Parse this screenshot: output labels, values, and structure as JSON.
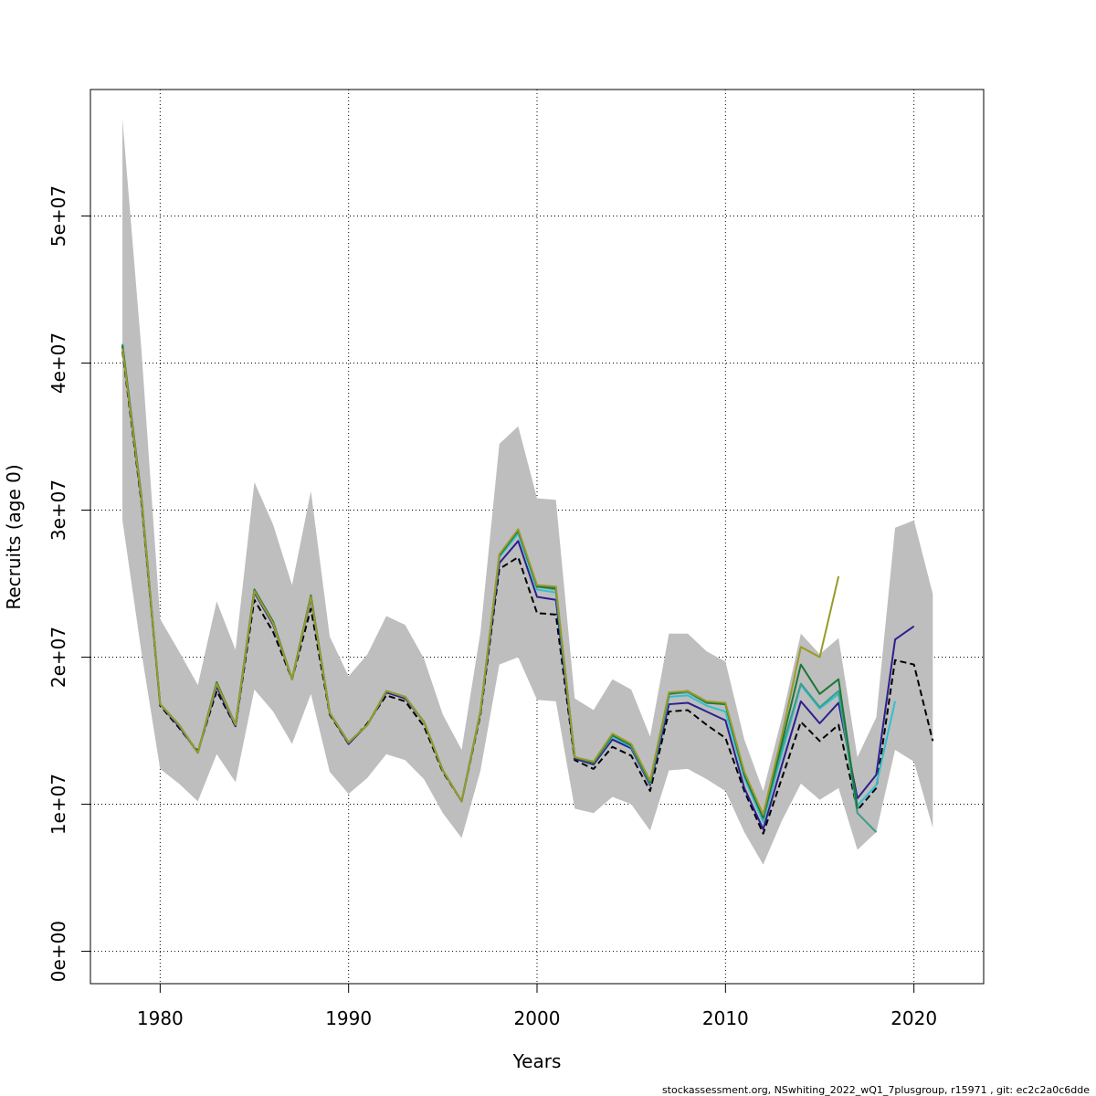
{
  "chart_data": {
    "type": "line",
    "title": "",
    "xlabel": "Years",
    "ylabel": "Recruits (age 0)",
    "xlim": [
      1976.3,
      1023.7
    ],
    "ylim": [
      -2200000,
      58600000
    ],
    "x_ticks": [
      1980,
      1990,
      2000,
      2010,
      2020
    ],
    "x_tick_labels": [
      "1980",
      "1990",
      "2000",
      "2010",
      "2020"
    ],
    "y_ticks": [
      0,
      10000000,
      20000000,
      30000000,
      40000000,
      50000000
    ],
    "y_tick_labels": [
      "0e+00",
      "1e+07",
      "2e+07",
      "3e+07",
      "4e+07",
      "5e+07"
    ],
    "grid": true,
    "band": {
      "fill": "#bebebe",
      "x": [
        1978,
        1979,
        1980,
        1981,
        1982,
        1983,
        1984,
        1985,
        1986,
        1987,
        1988,
        1989,
        1990,
        1991,
        1992,
        1993,
        1994,
        1995,
        1996,
        1997,
        1998,
        1999,
        2000,
        2001,
        2002,
        2003,
        2004,
        2005,
        2006,
        2007,
        2008,
        2009,
        2010,
        2011,
        2012,
        2013,
        2014,
        2015,
        2016,
        2017,
        2018,
        2019,
        2020,
        2021
      ],
      "upper": [
        56600000,
        41000000,
        22600000,
        20400000,
        18100000,
        23800000,
        20500000,
        31900000,
        29000000,
        24900000,
        31300000,
        21400000,
        18700000,
        20200000,
        22800000,
        22200000,
        19900000,
        16100000,
        13700000,
        21700000,
        34500000,
        35700000,
        30800000,
        30700000,
        17200000,
        16400000,
        18500000,
        17800000,
        14600000,
        21600000,
        21600000,
        20400000,
        19700000,
        14400000,
        10900000,
        15900000,
        21600000,
        20200000,
        21300000,
        13200000,
        15900000,
        28800000,
        29300000,
        24300000
      ],
      "lower": [
        29300000,
        20400000,
        12400000,
        11400000,
        10200000,
        13400000,
        11500000,
        17800000,
        16300000,
        14100000,
        17500000,
        12200000,
        10700000,
        11800000,
        13400000,
        13000000,
        11700000,
        9400000,
        7700000,
        12300000,
        19500000,
        20000000,
        17100000,
        17000000,
        9700000,
        9400000,
        10500000,
        10000000,
        8200000,
        12300000,
        12400000,
        11700000,
        10900000,
        8100000,
        5900000,
        8900000,
        11400000,
        10300000,
        11100000,
        6900000,
        8100000,
        13700000,
        12900000,
        8400000
      ]
    },
    "series": [
      {
        "color": "#000000",
        "dash": true,
        "width": 2,
        "x": [
          1978,
          1979,
          1980,
          1981,
          1982,
          1983,
          1984,
          1985,
          1986,
          1987,
          1988,
          1989,
          1990,
          1991,
          1992,
          1993,
          1994,
          1995,
          1996,
          1997,
          1998,
          1999,
          2000,
          2001,
          2002,
          2003,
          2004,
          2005,
          2006,
          2007,
          2008,
          2009,
          2010,
          2011,
          2012,
          2013,
          2014,
          2015,
          2016,
          2017,
          2018,
          2019,
          2020,
          2021
        ],
        "values": [
          40800000,
          30600000,
          16700000,
          15200000,
          13600000,
          17700000,
          15300000,
          23900000,
          21700000,
          18500000,
          23300000,
          16100000,
          14100000,
          15500000,
          17400000,
          17000000,
          15300000,
          12200000,
          10200000,
          16100000,
          26000000,
          26800000,
          23000000,
          22900000,
          13000000,
          12400000,
          13900000,
          13300000,
          10900000,
          16300000,
          16400000,
          15400000,
          14500000,
          10900000,
          8000000,
          11800000,
          15600000,
          14300000,
          15400000,
          9600000,
          11100000,
          19800000,
          19500000,
          14300000
        ]
      },
      {
        "color": "#2c1f8f",
        "dash": false,
        "width": 2,
        "x": [
          1978,
          1979,
          1980,
          1981,
          1982,
          1983,
          1984,
          1985,
          1986,
          1987,
          1988,
          1989,
          1990,
          1991,
          1992,
          1993,
          1994,
          1995,
          1996,
          1997,
          1998,
          1999,
          2000,
          2001,
          2002,
          2003,
          2004,
          2005,
          2006,
          2007,
          2008,
          2009,
          2010,
          2011,
          2012,
          2013,
          2014,
          2015,
          2016,
          2017,
          2018,
          2019,
          2020
        ],
        "values": [
          41100000,
          30800000,
          16800000,
          15300000,
          13500000,
          18000000,
          15300000,
          24400000,
          22200000,
          18500000,
          24000000,
          16200000,
          14100000,
          15400000,
          17600000,
          17200000,
          15600000,
          12300000,
          10200000,
          16300000,
          26400000,
          27900000,
          24100000,
          23900000,
          13100000,
          12700000,
          14400000,
          13800000,
          11300000,
          16800000,
          16900000,
          16300000,
          15700000,
          11100000,
          8300000,
          12700000,
          17000000,
          15500000,
          16900000,
          10400000,
          12000000,
          21200000,
          22100000
        ]
      },
      {
        "color": "#30c0d0",
        "dash": false,
        "width": 2,
        "x": [
          1978,
          1979,
          1980,
          1981,
          1982,
          1983,
          1984,
          1985,
          1986,
          1987,
          1988,
          1989,
          1990,
          1991,
          1992,
          1993,
          1994,
          1995,
          1996,
          1997,
          1998,
          1999,
          2000,
          2001,
          2002,
          2003,
          2004,
          2005,
          2006,
          2007,
          2008,
          2009,
          2010,
          2011,
          2012,
          2013,
          2014,
          2015,
          2016,
          2017,
          2018,
          2019
        ],
        "values": [
          41200000,
          30900000,
          16800000,
          15400000,
          13500000,
          18200000,
          15400000,
          24500000,
          22300000,
          18500000,
          24100000,
          16200000,
          14200000,
          15400000,
          17700000,
          17300000,
          15600000,
          12300000,
          10200000,
          16300000,
          26800000,
          28400000,
          24600000,
          24400000,
          13200000,
          12800000,
          14600000,
          13900000,
          11400000,
          17300000,
          17400000,
          16700000,
          16300000,
          11800000,
          8800000,
          13500000,
          18100000,
          16500000,
          17500000,
          9900000,
          11300000,
          17000000
        ]
      },
      {
        "color": "#3a9e8a",
        "dash": false,
        "width": 2,
        "x": [
          1978,
          1979,
          1980,
          1981,
          1982,
          1983,
          1984,
          1985,
          1986,
          1987,
          1988,
          1989,
          1990,
          1991,
          1992,
          1993,
          1994,
          1995,
          1996,
          1997,
          1998,
          1999,
          2000,
          2001,
          2002,
          2003,
          2004,
          2005,
          2006,
          2007,
          2008,
          2009,
          2010,
          2011,
          2012,
          2013,
          2014,
          2015,
          2016,
          2017,
          2018
        ],
        "values": [
          41300000,
          31000000,
          16800000,
          15400000,
          13500000,
          18200000,
          15400000,
          24600000,
          22400000,
          18500000,
          24200000,
          16200000,
          14200000,
          15400000,
          17700000,
          17300000,
          15600000,
          12300000,
          10200000,
          16300000,
          26900000,
          28600000,
          24800000,
          24600000,
          13200000,
          12800000,
          14700000,
          14000000,
          11400000,
          17500000,
          17600000,
          16900000,
          16800000,
          12000000,
          9000000,
          13800000,
          18200000,
          16600000,
          17700000,
          9400000,
          8100000
        ]
      },
      {
        "color": "#1b7837",
        "dash": false,
        "width": 2,
        "x": [
          1978,
          1979,
          1980,
          1981,
          1982,
          1983,
          1984,
          1985,
          1986,
          1987,
          1988,
          1989,
          1990,
          1991,
          1992,
          1993,
          1994,
          1995,
          1996,
          1997,
          1998,
          1999,
          2000,
          2001,
          2002,
          2003,
          2004,
          2005,
          2006,
          2007,
          2008,
          2009,
          2010,
          2011,
          2012,
          2013,
          2014,
          2015,
          2016,
          2017
        ],
        "values": [
          41200000,
          31000000,
          16800000,
          15400000,
          13500000,
          18300000,
          15400000,
          24600000,
          22400000,
          18500000,
          24200000,
          16200000,
          14200000,
          15400000,
          17700000,
          17300000,
          15600000,
          12300000,
          10200000,
          16300000,
          26900000,
          28600000,
          24800000,
          24700000,
          13200000,
          12800000,
          14700000,
          14000000,
          11500000,
          17500000,
          17700000,
          16900000,
          16800000,
          12000000,
          9100000,
          14200000,
          19500000,
          17500000,
          18500000,
          9700000
        ]
      },
      {
        "color": "#9a9a2a",
        "dash": false,
        "width": 2,
        "x": [
          1978,
          1979,
          1980,
          1981,
          1982,
          1983,
          1984,
          1985,
          1986,
          1987,
          1988,
          1989,
          1990,
          1991,
          1992,
          1993,
          1994,
          1995,
          1996,
          1997,
          1998,
          1999,
          2000,
          2001,
          2002,
          2003,
          2004,
          2005,
          2006,
          2007,
          2008,
          2009,
          2010,
          2011,
          2012,
          2013,
          2014,
          2015,
          2016
        ],
        "values": [
          41000000,
          30900000,
          16800000,
          15400000,
          13500000,
          18200000,
          15400000,
          24500000,
          22300000,
          18500000,
          24100000,
          16200000,
          14200000,
          15400000,
          17700000,
          17300000,
          15600000,
          12300000,
          10200000,
          16300000,
          27000000,
          28700000,
          24900000,
          24800000,
          13200000,
          12900000,
          14800000,
          14100000,
          11600000,
          17600000,
          17700000,
          17000000,
          16900000,
          12200000,
          9300000,
          14700000,
          20700000,
          20000000,
          25500000
        ]
      }
    ]
  },
  "footer": {
    "text": "stockassessment.org, NSwhiting_2022_wQ1_7plusgroup, r15971 , git: ec2c2a0c6dde"
  }
}
